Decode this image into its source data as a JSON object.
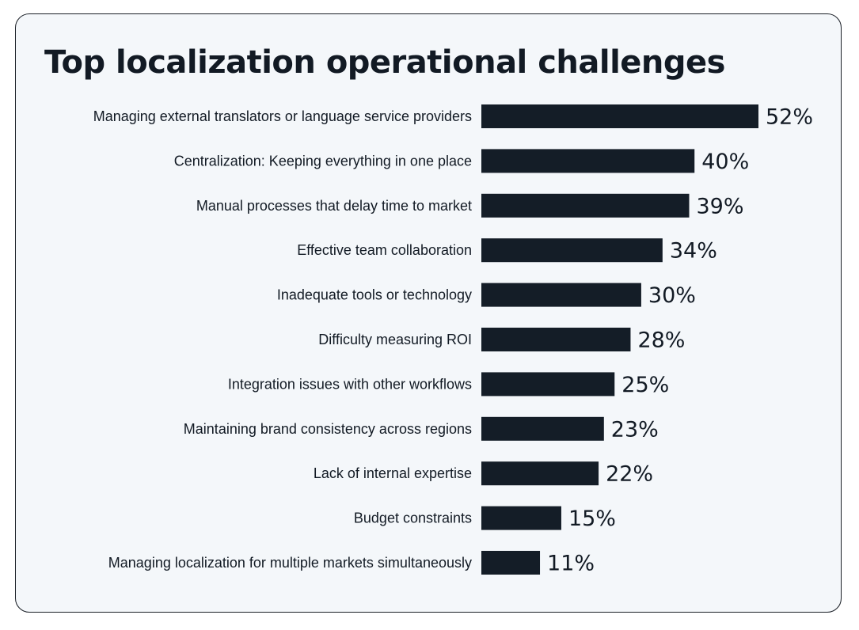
{
  "title": "Top localization operational challenges",
  "colors": {
    "bar": "#141d27",
    "text": "#121a24",
    "card_bg": "#f4f7fa"
  },
  "chart_data": {
    "type": "bar",
    "orientation": "horizontal",
    "title": "Top localization operational challenges",
    "categories": [
      "Managing external translators or language service providers",
      "Centralization: Keeping everything in one place",
      "Manual processes that delay time to market",
      "Effective team collaboration",
      "Inadequate tools or technology",
      "Difficulty measuring ROI",
      "Integration issues with other workflows",
      "Maintaining brand consistency across regions",
      "Lack of internal expertise",
      "Budget constraints",
      "Managing localization for multiple markets simultaneously"
    ],
    "values": [
      52,
      40,
      39,
      34,
      30,
      28,
      25,
      23,
      22,
      15,
      11
    ],
    "value_labels": [
      "52%",
      "40%",
      "39%",
      "34%",
      "30%",
      "28%",
      "25%",
      "23%",
      "22%",
      "15%",
      "11%"
    ],
    "unit": "%",
    "grid": false,
    "legend": "none"
  }
}
